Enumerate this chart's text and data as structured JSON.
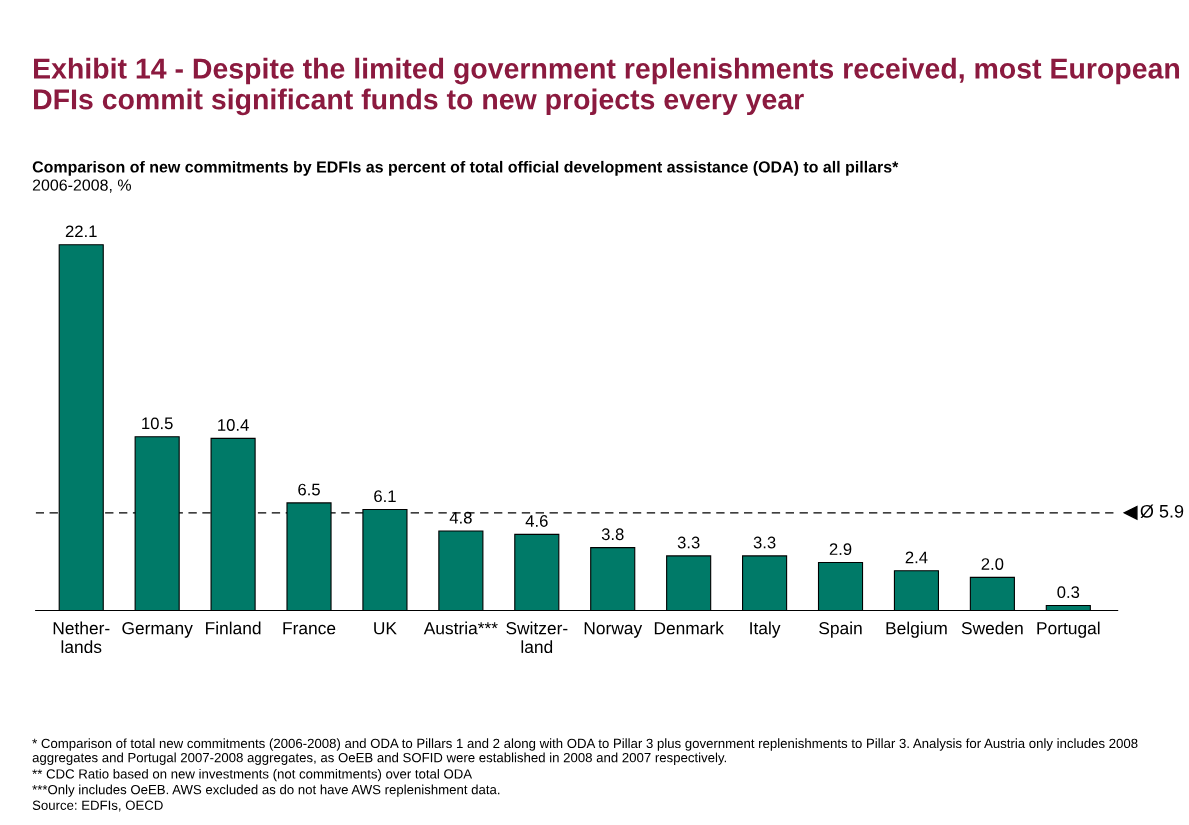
{
  "chart_data": {
    "type": "bar",
    "title": "Exhibit 14 - Despite the limited government replenishments received, most European DFIs commit significant funds to new projects every year",
    "subtitle": "Comparison of new commitments by EDFIs as percent of total official development assistance (ODA) to all pillars*",
    "ylabel": "2006-2008, %",
    "categories": [
      "Nether-\nlands",
      "Germany",
      "Finland",
      "France",
      "UK",
      "Austria***",
      "Switzer-\nland",
      "Norway",
      "Denmark",
      "Italy",
      "Spain",
      "Belgium",
      "Sweden",
      "Portugal"
    ],
    "values": [
      22.1,
      10.5,
      10.4,
      6.5,
      6.1,
      4.8,
      4.6,
      3.8,
      3.3,
      3.3,
      2.9,
      2.4,
      2.0,
      0.3
    ],
    "color": "#007a68",
    "value_labels": [
      "22.1",
      "10.5",
      "10.4",
      "6.5",
      "6.1",
      "4.8",
      "4.6",
      "3.8",
      "3.3",
      "3.3",
      "2.9",
      "2.4",
      "2.0",
      "0.3"
    ],
    "ref_lines": [
      {
        "axis": "y",
        "value": 5.9,
        "label": "Ø 5.9",
        "line_style": "dashed",
        "color": "#000000"
      }
    ],
    "annotations": [
      "* Comparison of total new commitments (2006-2008) and ODA to Pillars 1 and 2 along with ODA to Pillar 3 plus government replenishments to Pillar 3. Analysis for Austria only includes 2008 aggregates and Portugal 2007-2008 aggregates, as OeEB and SOFID were established in 2008 and 2007 respectively.",
      "** CDC Ratio based on new investments (not commitments) over total ODA",
      "***Only includes OeEB. AWS excluded as do not have AWS replenishment data.",
      "Source: EDFIs, OECD"
    ],
    "grid": false,
    "legend": false
  }
}
